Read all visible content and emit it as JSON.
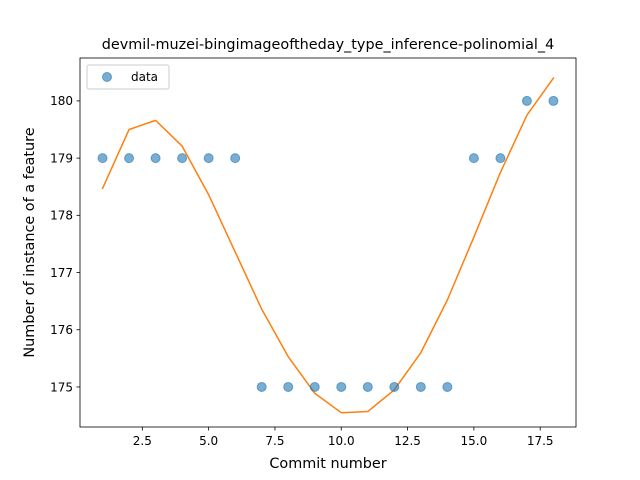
{
  "chart_data": {
    "type": "scatter",
    "title": "devmil-muzei-bingimageoftheday_type_inference-polinomial_4",
    "xlabel": "Commit number",
    "ylabel": "Number of instance of a feature",
    "xlim": [
      0.15,
      18.85
    ],
    "ylim": [
      174.3,
      180.75
    ],
    "xticks": [
      "2.5",
      "5.0",
      "7.5",
      "10.0",
      "12.5",
      "15.0",
      "17.5"
    ],
    "xtick_values": [
      2.5,
      5.0,
      7.5,
      10.0,
      12.5,
      15.0,
      17.5
    ],
    "yticks": [
      "175",
      "176",
      "177",
      "178",
      "179",
      "180"
    ],
    "ytick_values": [
      175,
      176,
      177,
      178,
      179,
      180
    ],
    "grid": false,
    "legend": {
      "placement": "top-left",
      "entries": [
        "data"
      ]
    },
    "series": [
      {
        "name": "data",
        "kind": "scatter",
        "color": "#1f77b4",
        "x": [
          1,
          2,
          3,
          4,
          5,
          6,
          7,
          8,
          9,
          10,
          11,
          12,
          13,
          14,
          15,
          16,
          17,
          18
        ],
        "y": [
          179,
          179,
          179,
          179,
          179,
          179,
          175,
          175,
          175,
          175,
          175,
          175,
          175,
          175,
          179,
          179,
          180,
          180
        ]
      },
      {
        "kind": "line",
        "color": "#ff7f0e",
        "x": [
          1,
          2,
          3,
          4,
          5,
          6,
          7,
          8,
          9,
          10,
          11,
          12,
          13,
          14,
          15,
          16,
          17,
          18
        ],
        "y": [
          178.47,
          179.5,
          179.66,
          179.21,
          178.36,
          177.36,
          176.36,
          175.53,
          174.89,
          174.55,
          174.57,
          174.95,
          175.6,
          176.52,
          177.62,
          178.75,
          179.75,
          180.4
        ]
      }
    ]
  }
}
